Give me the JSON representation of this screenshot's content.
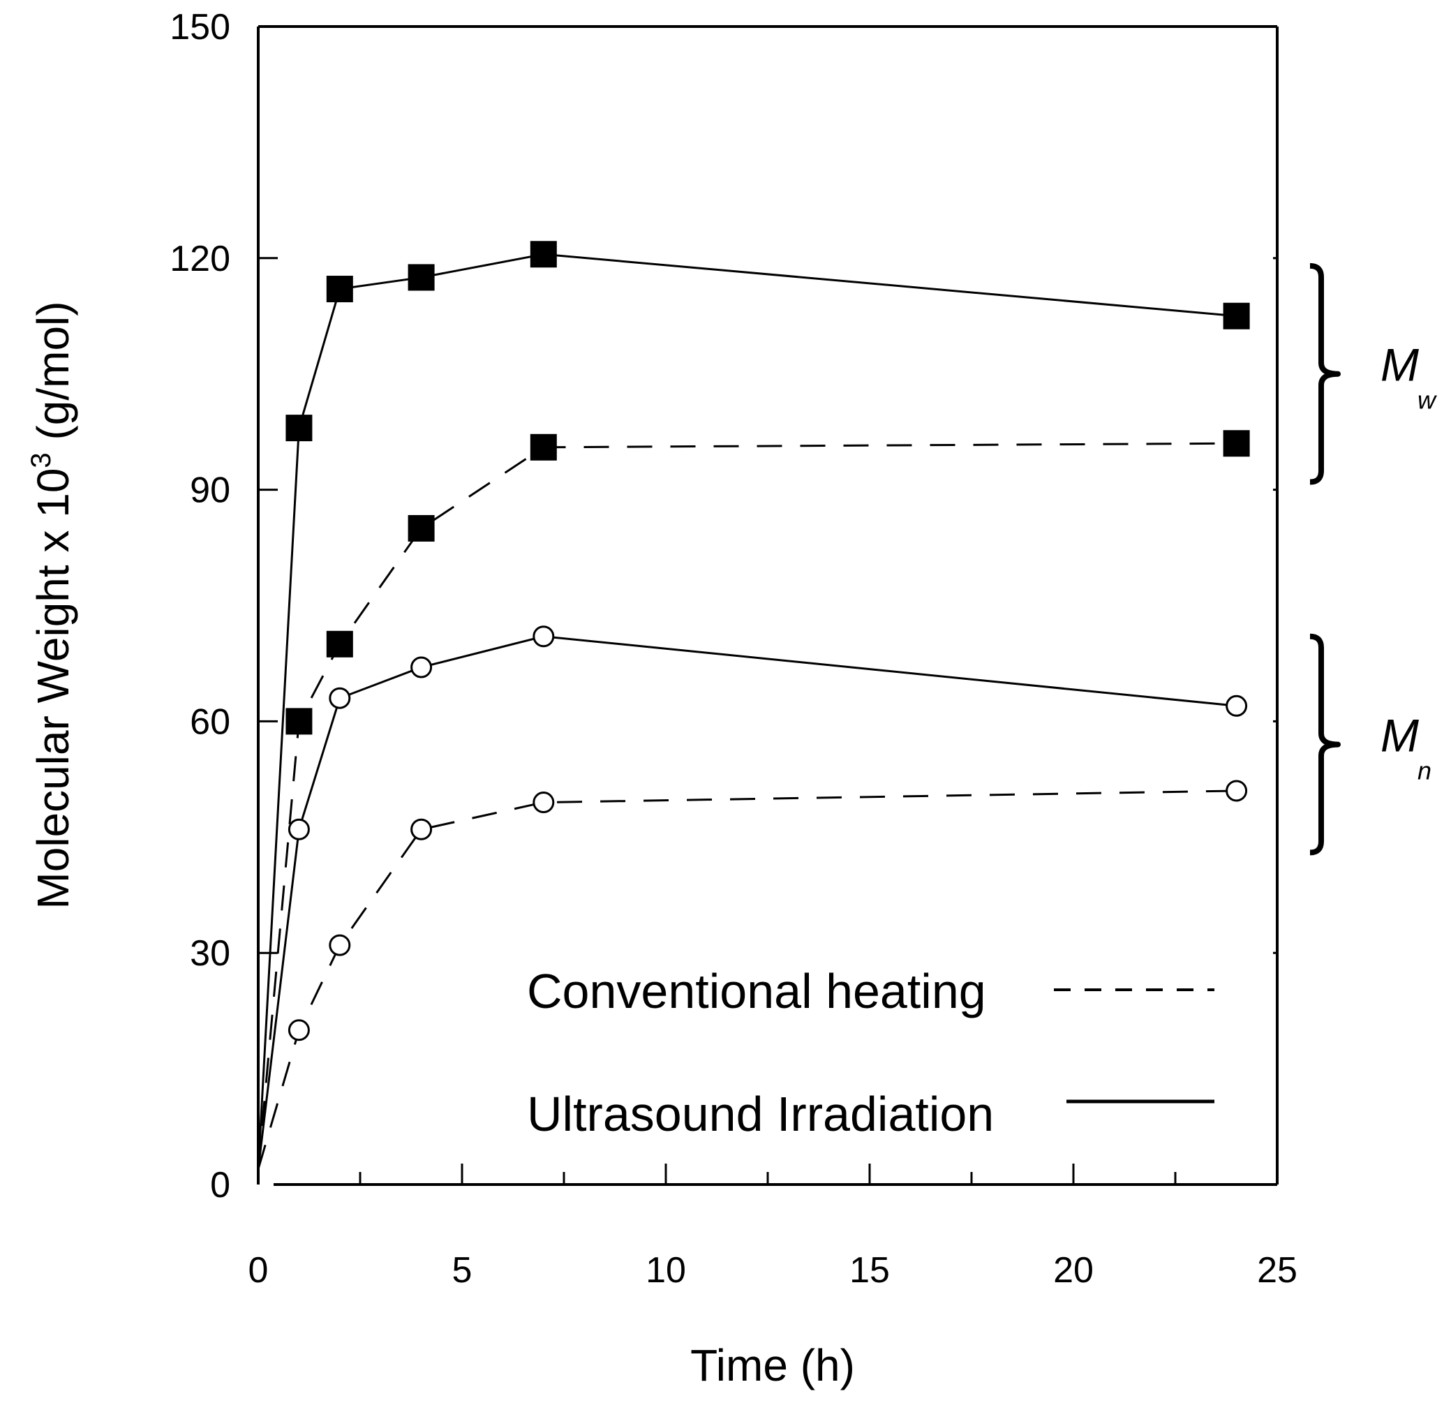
{
  "chart_data": {
    "type": "line",
    "title": "",
    "xlabel": "Time (h)",
    "ylabel_main": "Molecular Weight x 10",
    "ylabel_sup": "3",
    "ylabel_unit": " (g/mol)",
    "xlim": [
      0,
      25
    ],
    "ylim": [
      0,
      150
    ],
    "xticks": [
      0,
      5,
      10,
      15,
      20,
      25
    ],
    "yticks": [
      0,
      30,
      60,
      90,
      120,
      150
    ],
    "grid": false,
    "series": [
      {
        "name": "Mw - Ultrasound Irradiation",
        "group": "Mw",
        "method": "Ultrasound Irradiation",
        "line": "solid",
        "marker": "filled-square",
        "x": [
          0,
          1,
          2,
          4,
          7,
          24
        ],
        "y": [
          2,
          98,
          116,
          117.5,
          120.5,
          112.5
        ]
      },
      {
        "name": "Mw - Conventional heating",
        "group": "Mw",
        "method": "Conventional heating",
        "line": "dashed",
        "marker": "filled-square",
        "x": [
          0,
          1,
          2,
          4,
          7,
          24
        ],
        "y": [
          2,
          60,
          70,
          85,
          95.5,
          96
        ]
      },
      {
        "name": "Mn - Ultrasound Irradiation",
        "group": "Mn",
        "method": "Ultrasound Irradiation",
        "line": "solid",
        "marker": "open-circle",
        "x": [
          0,
          1,
          2,
          4,
          7,
          24
        ],
        "y": [
          2,
          46,
          63,
          67,
          71,
          62
        ]
      },
      {
        "name": "Mn - Conventional heating",
        "group": "Mn",
        "method": "Conventional heating",
        "line": "dashed",
        "marker": "open-circle",
        "x": [
          0,
          1,
          2,
          4,
          7,
          24
        ],
        "y": [
          2,
          20,
          31,
          46,
          49.5,
          51
        ]
      }
    ],
    "legend": {
      "placement": "bottom-right",
      "items": [
        {
          "label": "Conventional heating",
          "line": "dashed"
        },
        {
          "label": "Ultrasound Irradiation",
          "line": "solid"
        }
      ]
    },
    "annotations": [
      {
        "symbol": "M",
        "subscript": "w",
        "covers": [
          91,
          119
        ]
      },
      {
        "symbol": "M",
        "subscript": "n",
        "covers": [
          43,
          71
        ]
      }
    ]
  }
}
